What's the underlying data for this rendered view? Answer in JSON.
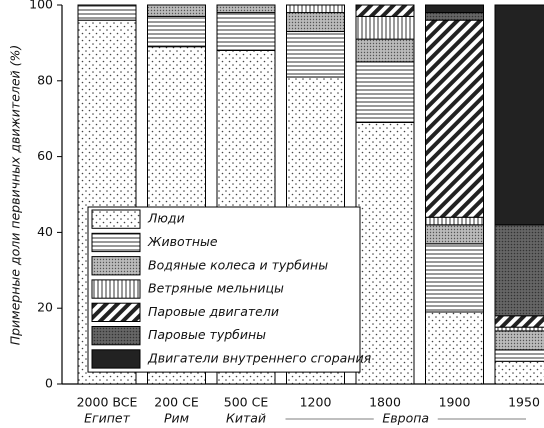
{
  "chart_data": {
    "type": "stacked_bar",
    "y_label": "Примерные доли первичных движителей (%)",
    "categories": [
      "2000 BCE",
      "200 CE",
      "500 CE",
      "1200",
      "1800",
      "1900",
      "1950"
    ],
    "category_groups": [
      "Египет",
      "Рим",
      "Китай",
      "Европа"
    ],
    "ylim": [
      0,
      100
    ],
    "yticks": [
      0,
      20,
      40,
      60,
      80,
      100
    ],
    "legend": "lower-left",
    "series": [
      {
        "name": "Люди",
        "pattern": "dots",
        "values": [
          96,
          89,
          88,
          81,
          69,
          19,
          6
        ]
      },
      {
        "name": "Животные",
        "pattern": "hlines",
        "values": [
          4,
          8,
          10,
          12,
          16,
          18,
          3
        ]
      },
      {
        "name": "Водяные колеса и турбины",
        "pattern": "graydots",
        "values": [
          0,
          3,
          2,
          5,
          6,
          5,
          5
        ]
      },
      {
        "name": "Ветряные мельницы",
        "pattern": "vlines",
        "values": [
          0,
          0,
          0,
          2,
          6,
          2,
          1
        ]
      },
      {
        "name": "Паровые двигатели",
        "pattern": "diag",
        "values": [
          0,
          0,
          0,
          0,
          3,
          52,
          3
        ]
      },
      {
        "name": "Паровые турбины",
        "pattern": "darkgray",
        "values": [
          0,
          0,
          0,
          0,
          0,
          2,
          24
        ]
      },
      {
        "name": "Двигатели внутреннего сгорания",
        "pattern": "black",
        "values": [
          0,
          0,
          0,
          0,
          0,
          2,
          58
        ]
      }
    ]
  }
}
